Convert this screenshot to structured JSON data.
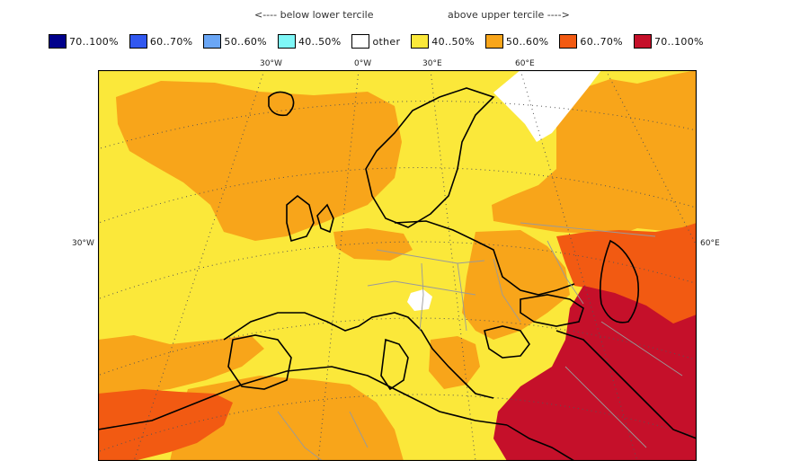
{
  "legend": {
    "below_label": "<---- below lower tercile",
    "above_label": "above upper tercile ---->",
    "items": [
      {
        "label": "70..100%",
        "color": "#00008b"
      },
      {
        "label": "60..70%",
        "color": "#3158f0"
      },
      {
        "label": "50..60%",
        "color": "#6aa6f5"
      },
      {
        "label": "40..50%",
        "color": "#7ff7f7"
      },
      {
        "label": "other",
        "color": "#ffffff"
      },
      {
        "label": "40..50%",
        "color": "#fbe83a"
      },
      {
        "label": "50..60%",
        "color": "#f8a51a"
      },
      {
        "label": "60..70%",
        "color": "#f25a12"
      },
      {
        "label": "70..100%",
        "color": "#c5102a"
      }
    ]
  },
  "map": {
    "longitude_labels": [
      "30°W",
      "0°W",
      "30°E",
      "60°E"
    ],
    "latitude_labels": {
      "left": "30°W",
      "right": "60°E"
    }
  }
}
